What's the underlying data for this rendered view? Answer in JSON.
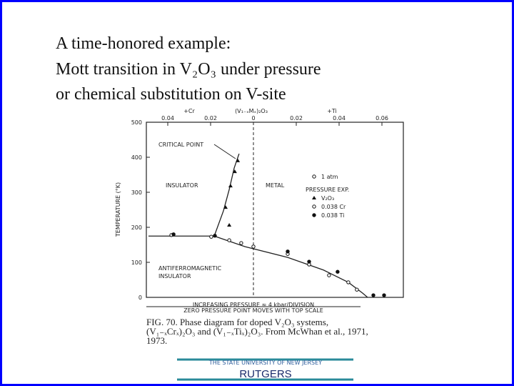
{
  "slide": {
    "title_lines": [
      "A time-honored example:",
      "Mott transition in V₂O₃ under pressure",
      "or chemical substitution on V-site"
    ],
    "footer": {
      "university": "THE STATE UNIVERSITY OF NEW JERSEY",
      "name": "RUTGERS"
    }
  },
  "chart_data": {
    "type": "scatter",
    "top_axis": {
      "left": "+Cr",
      "center": "(V₁₋ₓMₓ)₂O₃",
      "right": "+Ti"
    },
    "ylabel": "TEMPERATURE (°K)",
    "xlim": [
      -0.05,
      0.07
    ],
    "ylim": [
      0,
      500
    ],
    "xticks": [
      {
        "value": -0.04,
        "label": "0.04"
      },
      {
        "value": -0.02,
        "label": "0.02"
      },
      0,
      0.02,
      0.04,
      0.06
    ],
    "yticks": [
      0,
      100,
      200,
      300,
      400,
      500
    ],
    "annotations": [
      "CRITICAL POINT",
      "INSULATOR",
      "METAL",
      "ANTIFERROMAGNETIC",
      "INSULATOR",
      "INCREASING PRESSURE ≈ 4 kbar/DIVISION",
      "ZERO PRESSURE POINT MOVES WITH TOP SCALE"
    ],
    "legend_title": "PRESSURE EXP.",
    "lines": [
      {
        "x": [
          -0.049,
          -0.0183,
          -0.014,
          -0.0113,
          -0.009,
          -0.0067
        ],
        "y": [
          175,
          175,
          247,
          308,
          369,
          410
        ]
      },
      {
        "x": [
          -0.0183,
          -0.004,
          0.016,
          0.0327,
          0.0443,
          0.051,
          0.0533
        ],
        "y": [
          175,
          145,
          114,
          78,
          43,
          12,
          0
        ]
      }
    ],
    "series": [
      {
        "name": "1 atm",
        "color": "#111111",
        "x": [
          -0.0383,
          -0.0197,
          -0.0057,
          0,
          0.016,
          0.026,
          0.0353,
          0.0443,
          0.0483
        ],
        "y": [
          178,
          173,
          155,
          145,
          124,
          94,
          63,
          43,
          22
        ]
      },
      {
        "name": "V₂O₃",
        "color": "#111111",
        "x": [
          -0.013,
          -0.0107,
          -0.0087,
          -0.0073,
          -0.0113
        ],
        "y": [
          257,
          318,
          359,
          390,
          206
        ]
      },
      {
        "name": "0.038 Cr",
        "color": "#111111",
        "x": [
          -0.0113,
          0.026
        ],
        "y": [
          163,
          94
        ]
      },
      {
        "name": "0.038 Ti",
        "color": "#111111",
        "x": [
          -0.0373,
          -0.018,
          0.016,
          0.026,
          0.0393,
          0.056,
          0.061
        ],
        "y": [
          180,
          176,
          131,
          102,
          73,
          6,
          6
        ]
      }
    ],
    "caption_lines": [
      "FIG. 70. Phase diagram for doped V₂O₃ systems,",
      "(V₁₋ₓCrₓ)₂O₃ and (V₁₋ₓTiₓ)₂O₃. From McWhan et al., 1971,",
      "1973."
    ]
  }
}
